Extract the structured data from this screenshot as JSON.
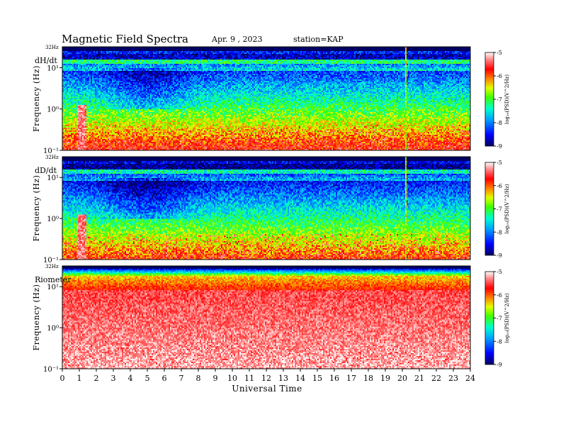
{
  "header": {
    "title": "Magnetic  Field  Spectra",
    "date": "Apr. 9  , 2023",
    "station": "station=KAP"
  },
  "chart_data": {
    "type": "heatmap",
    "xlabel": "Universal Time",
    "xlim": [
      0,
      24
    ],
    "x_ticks": [
      "0",
      "1",
      "2",
      "3",
      "4",
      "5",
      "6",
      "7",
      "8",
      "9",
      "10",
      "11",
      "12",
      "13",
      "14",
      "15",
      "16",
      "17",
      "18",
      "19",
      "20",
      "21",
      "22",
      "23",
      "24"
    ],
    "y_scale": "log",
    "panels": [
      {
        "label": "dH/dt",
        "ylabel": "Frequency  (Hz)",
        "top_tick": "32Hz",
        "y_ticks": [
          "10¹",
          "10⁰",
          "10⁻¹"
        ],
        "y_tick_values": [
          10,
          1,
          0.1
        ],
        "colorbar": {
          "ticks": [
            "-5",
            "-6",
            "-7",
            "-8",
            "-9"
          ],
          "range": [
            -9,
            -5
          ],
          "label": "log₁₀(PSD)(V^2/Hz)"
        }
      },
      {
        "label": "dD/dt",
        "ylabel": "Frequency  (Hz)",
        "top_tick": "32Hz",
        "y_ticks": [
          "10¹",
          "10⁰",
          "10⁻¹"
        ],
        "y_tick_values": [
          10,
          1,
          0.1
        ],
        "colorbar": {
          "ticks": [
            "-5",
            "-6",
            "-7",
            "-8",
            "-9"
          ],
          "range": [
            -9,
            -5
          ],
          "label": "log₁₀(PSD)(V^2/Hz)"
        }
      },
      {
        "label": "Riometer",
        "ylabel": "Frequency  (Hz)",
        "top_tick": "32Hz",
        "y_ticks": [
          "10¹",
          "10⁰",
          "10⁻¹"
        ],
        "y_tick_values": [
          10,
          1,
          0.1
        ],
        "colorbar": {
          "ticks": [
            "-5",
            "-6",
            "-7",
            "-8",
            "-9"
          ],
          "range": [
            -9,
            -5
          ],
          "label": "log₁₀(PSD)(V^2/Hz)"
        }
      }
    ]
  }
}
